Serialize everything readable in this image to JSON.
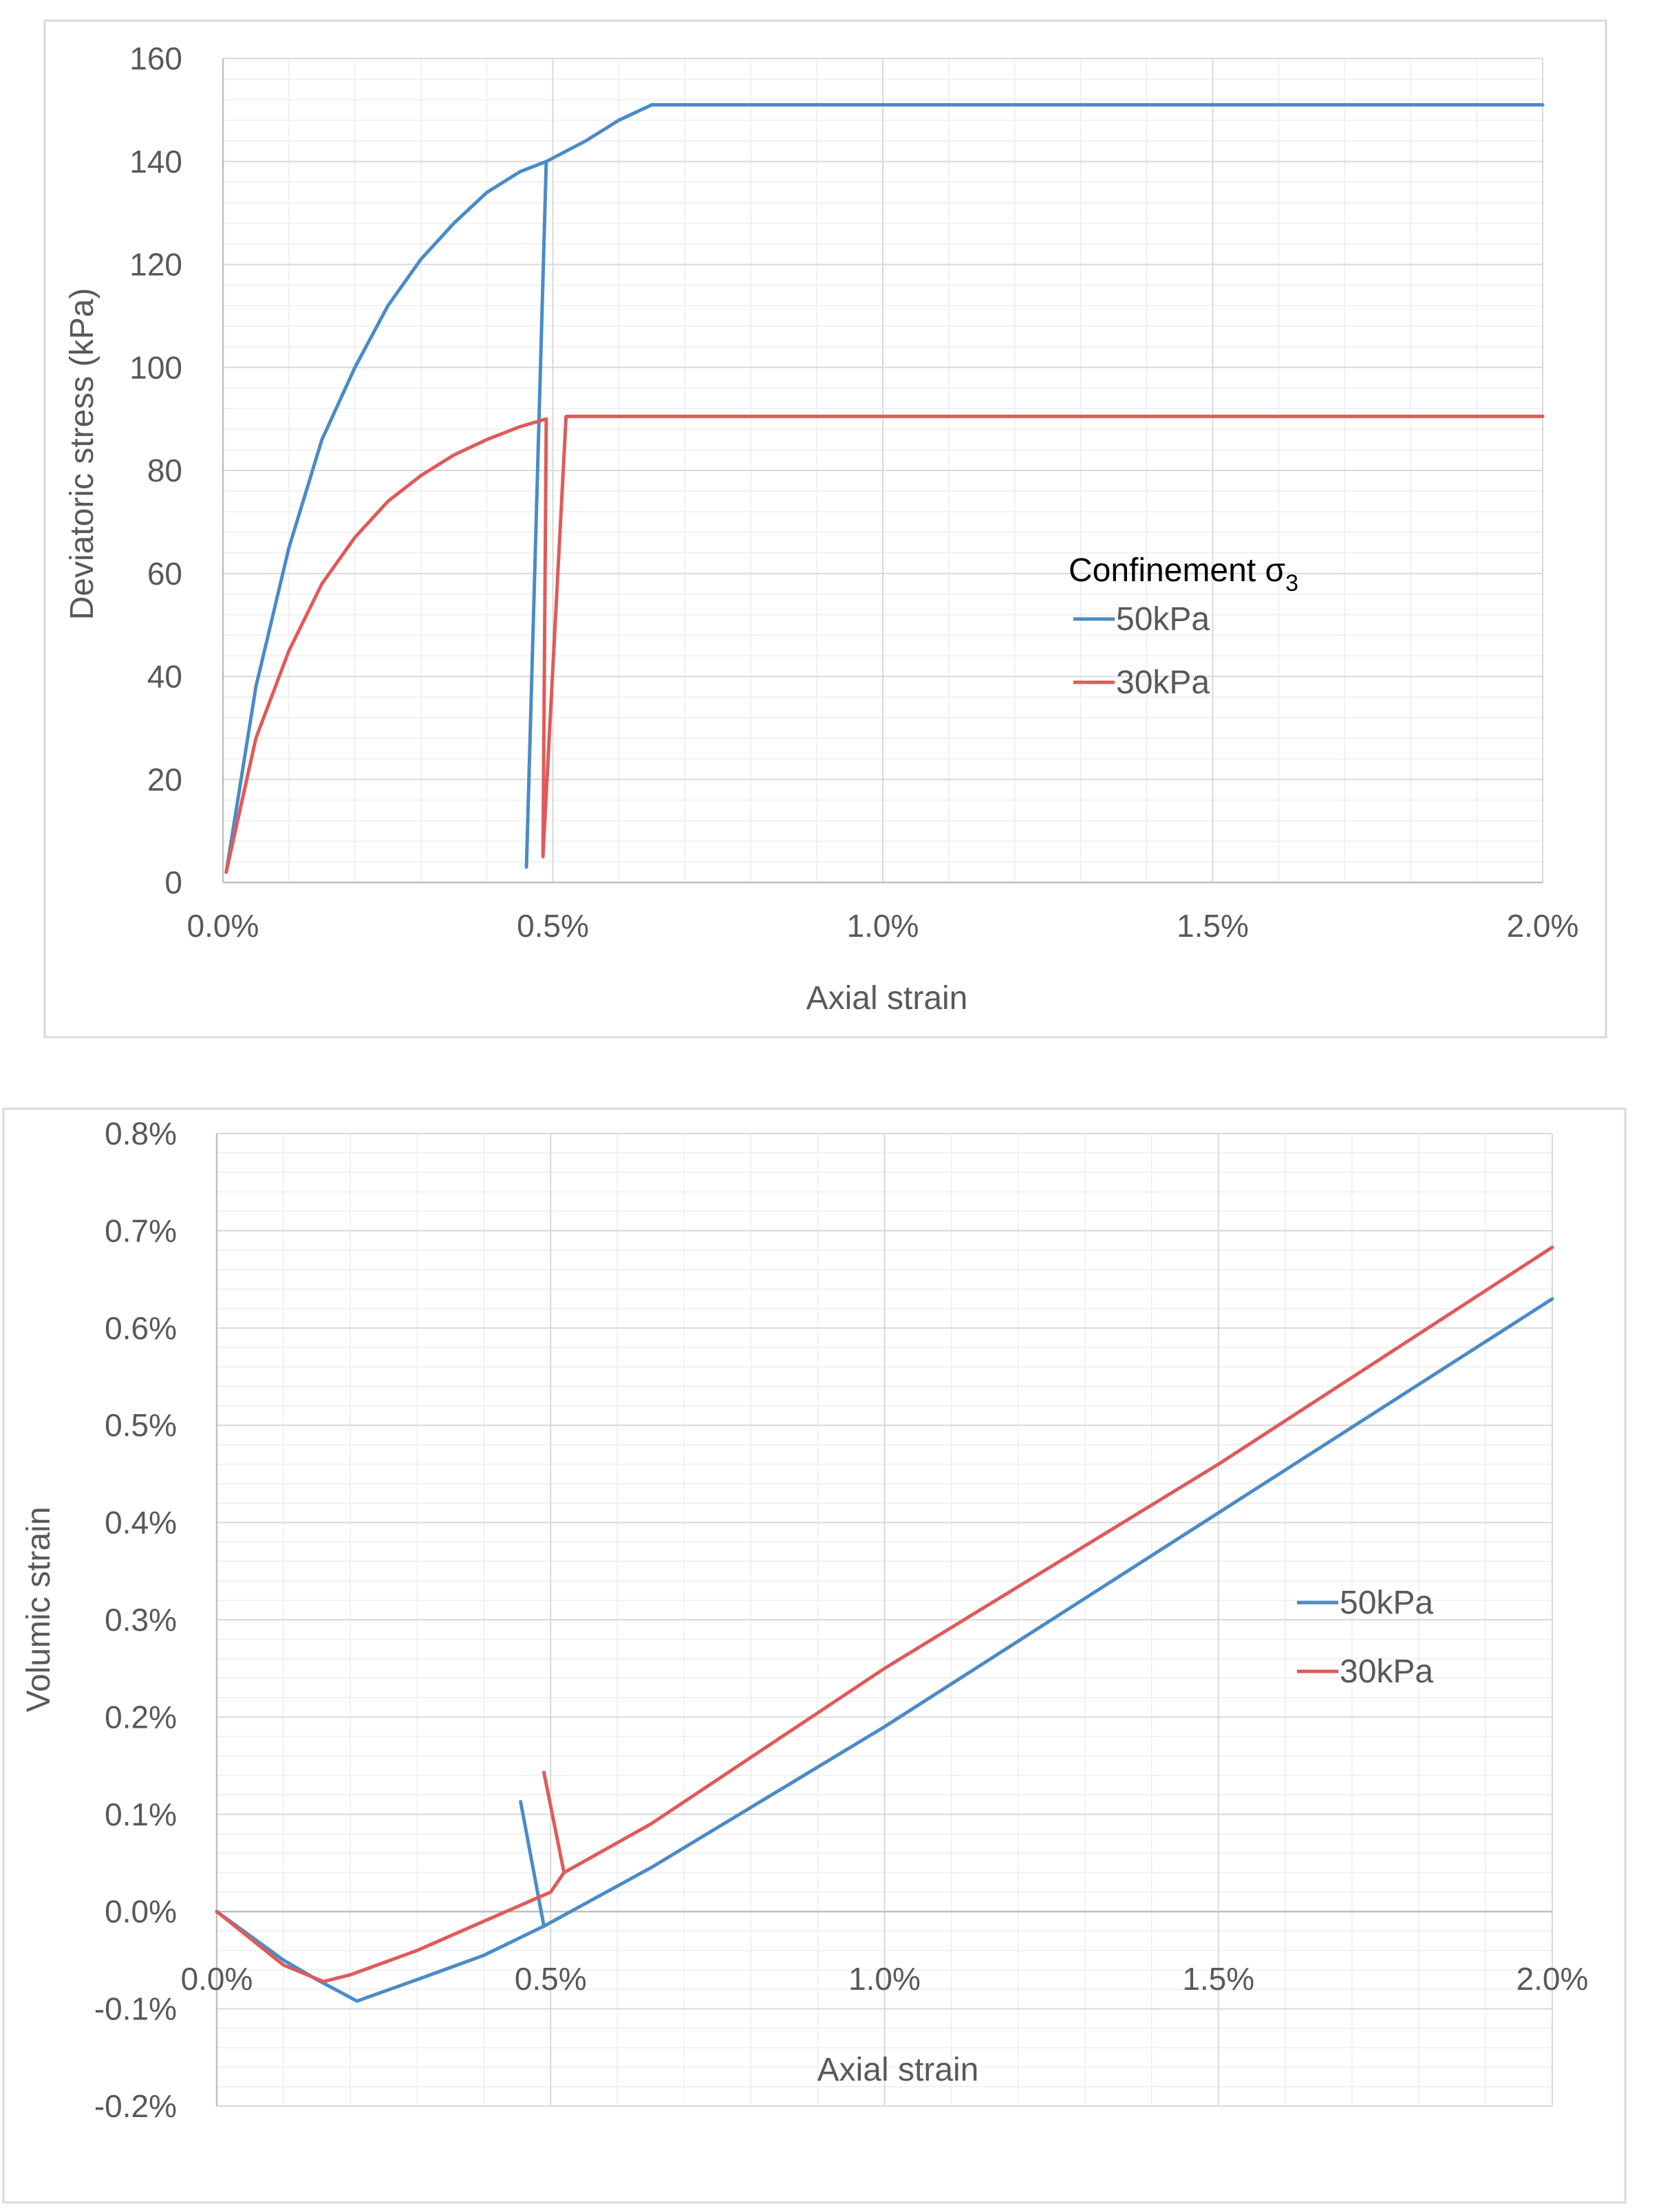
{
  "chart_data": [
    {
      "type": "line",
      "title": "",
      "xlabel": "Axial strain",
      "ylabel": "Deviatoric stress (kPa)",
      "xlim": [
        0,
        0.02
      ],
      "ylim": [
        0,
        160
      ],
      "x_ticks": [
        0,
        0.005,
        0.01,
        0.015,
        0.02
      ],
      "x_tick_labels": [
        "0.0%",
        "0.5%",
        "1.0%",
        "1.5%",
        "2.0%"
      ],
      "y_ticks": [
        0,
        20,
        40,
        60,
        80,
        100,
        120,
        140,
        160
      ],
      "y_tick_labels": [
        "0",
        "20",
        "40",
        "60",
        "80",
        "100",
        "120",
        "140",
        "160"
      ],
      "grid": true,
      "legend_title": "Confinement σ",
      "legend_title_subscript": "3",
      "legend_position": "center-right",
      "series": [
        {
          "name": "50kPa",
          "color": "#4a8bc8",
          "x": [
            5e-05,
            0.0005,
            0.001,
            0.0015,
            0.002,
            0.0025,
            0.003,
            0.0035,
            0.004,
            0.0045,
            0.0049,
            0.0046,
            0.0049,
            0.0055,
            0.006,
            0.0065,
            0.007,
            0.01,
            0.015,
            0.02
          ],
          "y": [
            2,
            38,
            65,
            86,
            100,
            112,
            121,
            128,
            134,
            138,
            140,
            3,
            140,
            144,
            148,
            151,
            151,
            151,
            151,
            151
          ]
        },
        {
          "name": "30kPa",
          "color": "#e05a5a",
          "x": [
            5e-05,
            0.0005,
            0.001,
            0.0015,
            0.002,
            0.0025,
            0.003,
            0.0035,
            0.004,
            0.0045,
            0.0049,
            0.00485,
            0.0052,
            0.0055,
            0.01,
            0.015,
            0.02
          ],
          "y": [
            2,
            28,
            45,
            58,
            67,
            74,
            79,
            83,
            86,
            88.5,
            90,
            5,
            90.5,
            90.5,
            90.5,
            90.5,
            90.5
          ]
        }
      ]
    },
    {
      "type": "line",
      "title": "",
      "xlabel": "Axial strain",
      "ylabel": "Volumic strain",
      "xlim": [
        0,
        0.02
      ],
      "ylim": [
        -0.002,
        0.008
      ],
      "x_ticks": [
        0,
        0.005,
        0.01,
        0.015,
        0.02
      ],
      "x_tick_labels": [
        "0.0%",
        "0.5%",
        "1.0%",
        "1.5%",
        "2.0%"
      ],
      "y_ticks": [
        -0.002,
        -0.001,
        0,
        0.001,
        0.002,
        0.003,
        0.004,
        0.005,
        0.006,
        0.007,
        0.008
      ],
      "y_tick_labels": [
        "-0.2%",
        "-0.1%",
        "0.0%",
        "0.1%",
        "0.2%",
        "0.3%",
        "0.4%",
        "0.5%",
        "0.6%",
        "0.7%",
        "0.8%"
      ],
      "grid": true,
      "legend_position": "center-right",
      "series": [
        {
          "name": "50kPa",
          "color": "#4a8bc8",
          "x": [
            0,
            0.001,
            0.0015,
            0.0021,
            0.003,
            0.004,
            0.0049,
            0.00455,
            0.0049,
            0.0065,
            0.01,
            0.015,
            0.02
          ],
          "y": [
            0,
            -0.0005,
            -0.0007,
            -0.00092,
            -0.0007,
            -0.00045,
            -0.00015,
            0.00113,
            -0.00015,
            0.00045,
            0.0019,
            0.0041,
            0.0063
          ]
        },
        {
          "name": "30kPa",
          "color": "#e05a5a",
          "x": [
            0,
            0.001,
            0.0016,
            0.002,
            0.003,
            0.004,
            0.005,
            0.0052,
            0.0049,
            0.0052,
            0.0065,
            0.01,
            0.015,
            0.02
          ],
          "y": [
            0,
            -0.00055,
            -0.00072,
            -0.00065,
            -0.0004,
            -0.0001,
            0.0002,
            0.0004,
            0.00143,
            0.0004,
            0.0009,
            0.0025,
            0.0046,
            0.00683
          ]
        }
      ]
    }
  ]
}
